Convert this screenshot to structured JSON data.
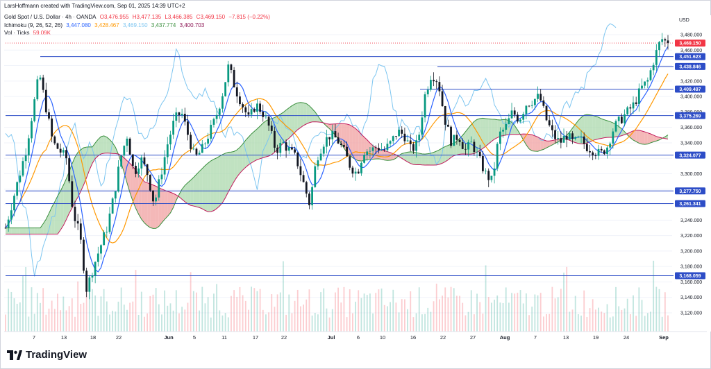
{
  "credit": "LarsHoffmann created with TradingView.com, Sep 01, 2025 14:39 UTC+2",
  "legend": {
    "symbol": "Gold Spot / U.S. Dollar · 4h · OANDA",
    "open": "O3,476.955",
    "high": "H3,477.135",
    "low": "L3,466.385",
    "close": "C3,469.150",
    "change": "−7.815 (−0.22%)",
    "ichimoku_label": "Ichimoku (9, 26, 52, 26)",
    "ichimoku_values": [
      "3,447.080",
      "3,428.467",
      "3,469.150",
      "3,437.774",
      "3,400.703"
    ],
    "vol_label": "Vol · Ticks",
    "vol_value": "59.09K"
  },
  "logo_text": "TradingView",
  "colors": {
    "up": "#089981",
    "down": "#f23645",
    "conversion": "#2962ff",
    "base": "#ff9800",
    "lagging": "#7cc5f0",
    "span_a": "#388e3c",
    "span_b": "#c2185b",
    "cloud_bull": "#a5d6a7",
    "cloud_bear": "#ef9a9a",
    "hline": "#2d4dc7"
  },
  "chart_data": {
    "type": "candlestick",
    "currency": "USD",
    "ylim": [
      3100,
      3500
    ],
    "y_ticks": [
      3120,
      3140,
      3160,
      3180,
      3200,
      3220,
      3240,
      3260,
      3280,
      3300,
      3320,
      3340,
      3360,
      3380,
      3400,
      3420,
      3440,
      3460,
      3480
    ],
    "x_ticks": [
      "7",
      "13",
      "18",
      "22",
      "Jun",
      "5",
      "11",
      "17",
      "22",
      "Jul",
      "6",
      "10",
      "16",
      "22",
      "27",
      "Aug",
      "7",
      "13",
      "19",
      "24",
      "Sep"
    ],
    "horizontal_levels": [
      3451.623,
      3438.846,
      3409.497,
      3375.269,
      3324.077,
      3277.75,
      3261.341,
      3168.059
    ],
    "price_labels": [
      "3,480.000",
      "3,469.150",
      "3,460.000",
      "3,451.623",
      "3,438.846",
      "3,420.000",
      "3,409.497",
      "3,400.000",
      "3,380.000",
      "3,375.269",
      "3,360.000",
      "3,340.000",
      "3,324.077",
      "3,300.000",
      "3,277.750",
      "3,261.341",
      "3,240.000",
      "3,220.000",
      "3,200.000",
      "3,180.000",
      "3,168.059",
      "3,160.000",
      "3,140.000",
      "3,120.000"
    ],
    "last_price": 3469.15,
    "price_path": [
      [
        0,
        3230
      ],
      [
        3,
        3330
      ],
      [
        5,
        3430
      ],
      [
        7,
        3340
      ],
      [
        9,
        3320
      ],
      [
        10,
        3250
      ],
      [
        11,
        3220
      ],
      [
        12,
        3150
      ],
      [
        13,
        3180
      ],
      [
        14,
        3205
      ],
      [
        15,
        3230
      ],
      [
        16,
        3270
      ],
      [
        17,
        3320
      ],
      [
        18,
        3350
      ],
      [
        19,
        3300
      ],
      [
        20,
        3320
      ],
      [
        21,
        3300
      ],
      [
        22,
        3260
      ],
      [
        23,
        3300
      ],
      [
        24,
        3340
      ],
      [
        25,
        3370
      ],
      [
        26,
        3380
      ],
      [
        27,
        3350
      ],
      [
        28,
        3320
      ],
      [
        29,
        3330
      ],
      [
        30,
        3350
      ],
      [
        31,
        3370
      ],
      [
        32,
        3400
      ],
      [
        33,
        3440
      ],
      [
        34,
        3410
      ],
      [
        35,
        3390
      ],
      [
        36,
        3370
      ],
      [
        37,
        3390
      ],
      [
        38,
        3380
      ],
      [
        39,
        3360
      ],
      [
        40,
        3330
      ],
      [
        41,
        3340
      ],
      [
        42,
        3330
      ],
      [
        43,
        3320
      ],
      [
        44,
        3290
      ],
      [
        45,
        3260
      ],
      [
        46,
        3320
      ],
      [
        47,
        3340
      ],
      [
        48,
        3350
      ],
      [
        49,
        3345
      ],
      [
        50,
        3330
      ],
      [
        51,
        3310
      ],
      [
        52,
        3300
      ],
      [
        53,
        3330
      ],
      [
        54,
        3330
      ],
      [
        55,
        3335
      ],
      [
        56,
        3330
      ],
      [
        57,
        3340
      ],
      [
        58,
        3355
      ],
      [
        59,
        3350
      ],
      [
        60,
        3330
      ],
      [
        61,
        3340
      ],
      [
        62,
        3400
      ],
      [
        63,
        3430
      ],
      [
        64,
        3420
      ],
      [
        65,
        3370
      ],
      [
        66,
        3340
      ],
      [
        67,
        3350
      ],
      [
        68,
        3330
      ],
      [
        69,
        3340
      ],
      [
        70,
        3320
      ],
      [
        71,
        3300
      ],
      [
        72,
        3290
      ],
      [
        73,
        3350
      ],
      [
        74,
        3360
      ],
      [
        75,
        3380
      ],
      [
        76,
        3370
      ],
      [
        77,
        3390
      ],
      [
        78,
        3395
      ],
      [
        79,
        3400
      ],
      [
        80,
        3370
      ],
      [
        81,
        3350
      ],
      [
        82,
        3340
      ],
      [
        83,
        3350
      ],
      [
        84,
        3340
      ],
      [
        85,
        3345
      ],
      [
        86,
        3335
      ],
      [
        87,
        3330
      ],
      [
        88,
        3325
      ],
      [
        89,
        3335
      ],
      [
        90,
        3360
      ],
      [
        91,
        3370
      ],
      [
        92,
        3380
      ],
      [
        93,
        3390
      ],
      [
        94,
        3410
      ],
      [
        95,
        3420
      ],
      [
        96,
        3450
      ],
      [
        97,
        3475
      ],
      [
        98,
        3469
      ]
    ],
    "volume_scale": "ticks"
  }
}
